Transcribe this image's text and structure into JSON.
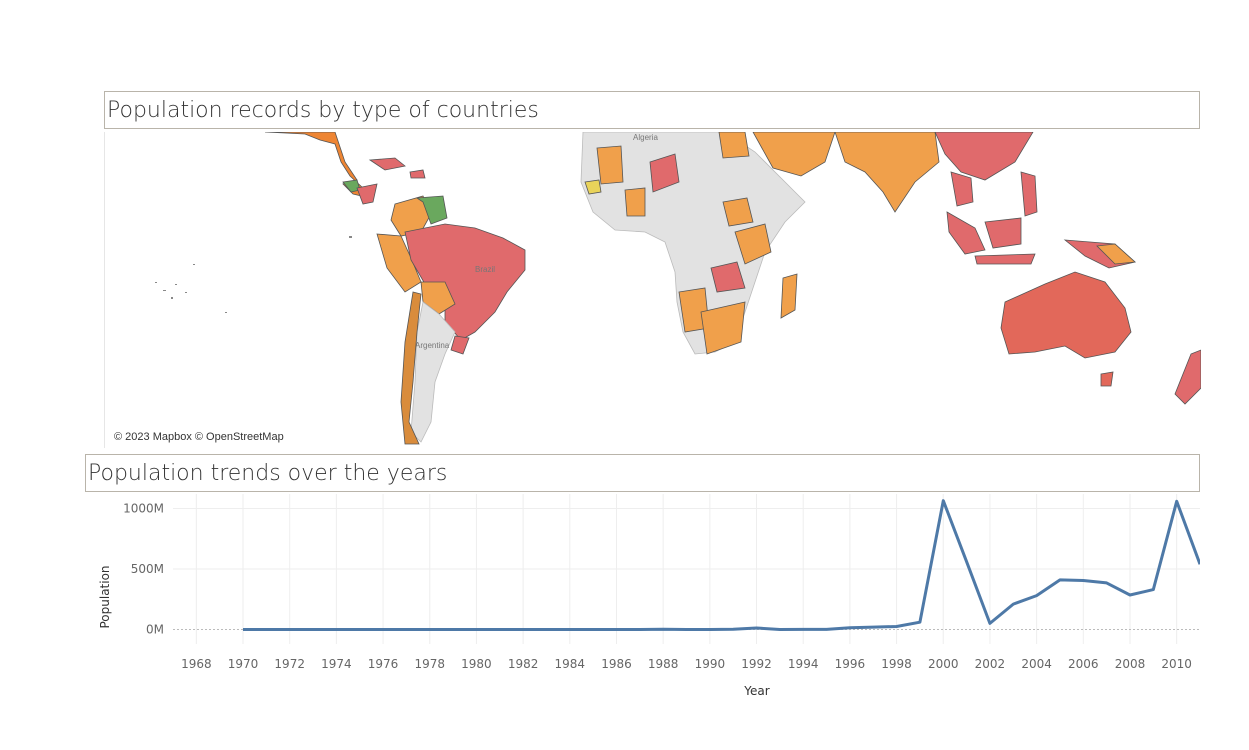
{
  "map_panel": {
    "title": "Population records by type of countries",
    "credit": "© 2023 Mapbox © OpenStreetMap",
    "labels": {
      "algeria": "Algeria",
      "brazil": "Brazil",
      "argentina": "Argentina"
    },
    "colors": {
      "red": "#e06a6c",
      "orange": "#f0a04b",
      "dark_orange": "#ee8533",
      "green": "#6aa85e",
      "yellow": "#e9d35a",
      "grey": "#e2e2e2",
      "ocean": "#ffffff"
    }
  },
  "line_panel": {
    "title": "Population trends over the years"
  },
  "chart_data": {
    "type": "line",
    "xlabel": "Year",
    "ylabel": "Population",
    "xlim": [
      1967,
      2011
    ],
    "ylim": [
      -120,
      1120
    ],
    "x_ticks": [
      1968,
      1970,
      1972,
      1974,
      1976,
      1978,
      1980,
      1982,
      1984,
      1986,
      1988,
      1990,
      1992,
      1994,
      1996,
      1998,
      2000,
      2002,
      2004,
      2006,
      2008,
      2010
    ],
    "y_ticks": [
      {
        "value": 0,
        "label": "0M"
      },
      {
        "value": 500,
        "label": "500M"
      },
      {
        "value": 1000,
        "label": "1000M"
      }
    ],
    "grid": true,
    "series_color": "#4e79a7",
    "series": [
      {
        "x": [
          1970,
          1971,
          1972,
          1973,
          1974,
          1975,
          1976,
          1977,
          1978,
          1979,
          1980,
          1981,
          1982,
          1983,
          1984,
          1985,
          1986,
          1987,
          1988,
          1989,
          1990,
          1991,
          1992,
          1993,
          1994,
          1995,
          1996,
          1997,
          1998,
          1999,
          2000,
          2001,
          2002,
          2003,
          2004,
          2005,
          2006,
          2007,
          2008,
          2009,
          2010,
          2011
        ],
        "values": [
          0,
          0,
          0,
          0,
          0,
          0,
          0,
          0,
          0,
          0,
          0,
          0,
          0,
          0,
          0,
          0,
          0,
          0,
          2,
          0,
          0,
          2,
          12,
          0,
          1,
          1,
          15,
          20,
          25,
          60,
          1065,
          560,
          50,
          210,
          280,
          410,
          405,
          385,
          285,
          330,
          1060,
          540
        ]
      }
    ]
  }
}
